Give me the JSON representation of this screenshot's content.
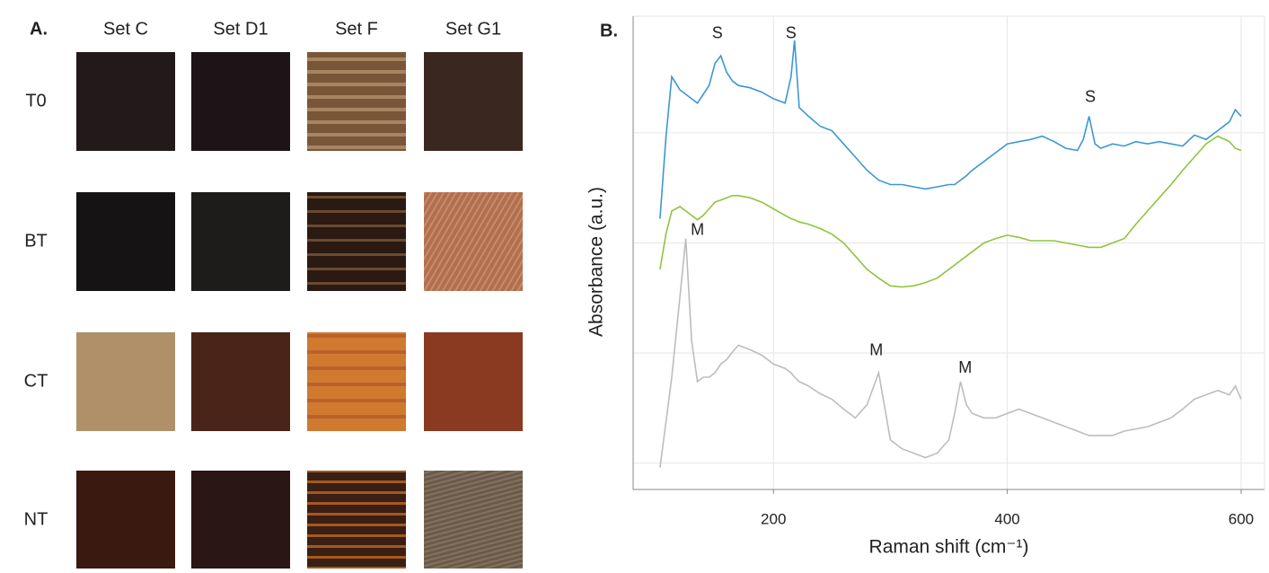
{
  "panel_a": {
    "label": "A.",
    "columns": [
      "Set C",
      "Set D1",
      "Set F",
      "Set G1"
    ],
    "rows": [
      "T0",
      "BT",
      "CT",
      "NT"
    ]
  },
  "chart_data": {
    "type": "line",
    "label": "B.",
    "x_label": "Raman shift (cm⁻¹)",
    "y_label": "Absorbance (a.u.)",
    "xlim": [
      80,
      620
    ],
    "xticks": [
      200,
      400,
      600
    ],
    "ylim": [
      0,
      4.3
    ],
    "ygrid": [
      0.24,
      1.24,
      2.24,
      3.24
    ],
    "grid": true,
    "x": [
      103,
      108,
      113,
      120,
      125,
      130,
      135,
      140,
      145,
      150,
      155,
      160,
      165,
      170,
      180,
      190,
      200,
      210,
      215,
      218,
      222,
      230,
      240,
      250,
      260,
      270,
      280,
      290,
      300,
      310,
      320,
      330,
      340,
      350,
      355,
      360,
      365,
      370,
      380,
      390,
      400,
      410,
      420,
      430,
      440,
      450,
      460,
      465,
      470,
      475,
      480,
      490,
      500,
      510,
      520,
      530,
      540,
      550,
      560,
      570,
      580,
      590,
      595,
      600
    ],
    "series": [
      {
        "color": "#3d97d3",
        "values": [
          2.46,
          3.2,
          3.75,
          3.63,
          3.59,
          3.55,
          3.51,
          3.59,
          3.67,
          3.87,
          3.94,
          3.79,
          3.71,
          3.67,
          3.65,
          3.61,
          3.55,
          3.51,
          3.75,
          4.08,
          3.47,
          3.39,
          3.3,
          3.26,
          3.14,
          3.02,
          2.9,
          2.81,
          2.77,
          2.77,
          2.75,
          2.73,
          2.75,
          2.77,
          2.77,
          2.81,
          2.85,
          2.9,
          2.98,
          3.06,
          3.14,
          3.16,
          3.18,
          3.21,
          3.16,
          3.1,
          3.08,
          3.18,
          3.39,
          3.14,
          3.1,
          3.14,
          3.12,
          3.16,
          3.14,
          3.16,
          3.14,
          3.12,
          3.22,
          3.18,
          3.26,
          3.34,
          3.45,
          3.39
        ]
      },
      {
        "color": "#8cc63e",
        "values": [
          2.0,
          2.32,
          2.53,
          2.57,
          2.53,
          2.49,
          2.45,
          2.49,
          2.55,
          2.61,
          2.63,
          2.65,
          2.67,
          2.67,
          2.65,
          2.61,
          2.55,
          2.49,
          2.46,
          2.45,
          2.43,
          2.41,
          2.37,
          2.32,
          2.24,
          2.12,
          2.0,
          1.92,
          1.85,
          1.84,
          1.85,
          1.88,
          1.92,
          2.0,
          2.04,
          2.08,
          2.12,
          2.16,
          2.24,
          2.28,
          2.31,
          2.29,
          2.26,
          2.26,
          2.26,
          2.24,
          2.22,
          2.21,
          2.2,
          2.2,
          2.2,
          2.24,
          2.28,
          2.41,
          2.53,
          2.65,
          2.77,
          2.9,
          3.02,
          3.14,
          3.21,
          3.16,
          3.1,
          3.08
        ]
      },
      {
        "color": "#bdbdbd",
        "values": [
          0.2,
          0.61,
          1.02,
          1.75,
          2.28,
          1.35,
          0.98,
          1.02,
          1.02,
          1.06,
          1.14,
          1.18,
          1.25,
          1.31,
          1.27,
          1.22,
          1.14,
          1.1,
          1.06,
          1.02,
          0.98,
          0.94,
          0.87,
          0.82,
          0.73,
          0.65,
          0.77,
          1.06,
          0.45,
          0.37,
          0.33,
          0.29,
          0.33,
          0.45,
          0.69,
          0.98,
          0.77,
          0.69,
          0.65,
          0.65,
          0.69,
          0.73,
          0.69,
          0.65,
          0.61,
          0.57,
          0.53,
          0.51,
          0.49,
          0.49,
          0.49,
          0.49,
          0.53,
          0.55,
          0.57,
          0.61,
          0.65,
          0.73,
          0.82,
          0.86,
          0.9,
          0.86,
          0.94,
          0.82
        ]
      }
    ],
    "annotations": [
      {
        "text": "S",
        "x": 152,
        "y": 4.14
      },
      {
        "text": "S",
        "x": 215,
        "y": 4.14
      },
      {
        "text": "S",
        "x": 471,
        "y": 3.56
      },
      {
        "text": "M",
        "x": 135,
        "y": 2.35
      },
      {
        "text": "M",
        "x": 288,
        "y": 1.26
      },
      {
        "text": "M",
        "x": 364,
        "y": 1.1
      }
    ]
  }
}
